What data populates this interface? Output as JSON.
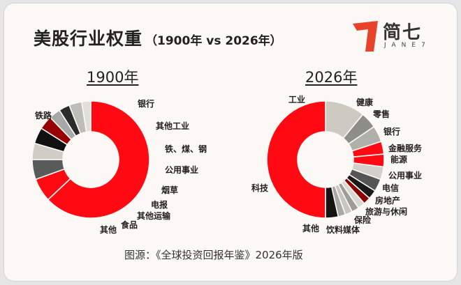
{
  "header": {
    "title": "美股行业权重",
    "subtitle": "（1900年 vs 2026年）"
  },
  "logo": {
    "name": "简七",
    "sub": "JANE7",
    "color": "#e8432a"
  },
  "source": "图源：《全球投资回报年鉴》2026年版",
  "chart_data": [
    {
      "type": "pie",
      "donut": true,
      "title": "1900年",
      "labels": [
        "铁路",
        "银行",
        "其他工业",
        "铁、煤、钢",
        "公用事业",
        "烟草",
        "电报",
        "其他运输",
        "食品",
        "其他"
      ],
      "values": [
        63,
        6.5,
        5.5,
        4.5,
        4.5,
        3.8,
        3.2,
        3.0,
        3.5,
        2.5
      ],
      "colors": [
        "#ff0a12",
        "#ff0a12",
        "#5a5a5a",
        "#cfcdc4",
        "#111111",
        "#960000",
        "#a8a8a8",
        "#2b2b2b",
        "#bdbdb8",
        "#e0dfd8"
      ]
    },
    {
      "type": "pie",
      "donut": true,
      "title": "2026年",
      "labels": [
        "工业",
        "健康",
        "零售",
        "银行",
        "金融服务",
        "能源",
        "公用事业",
        "电信",
        "房地产",
        "旅游与休闲",
        "保险",
        "媒体",
        "饮料",
        "其他",
        "科技"
      ],
      "values": [
        11,
        4.5,
        4.5,
        3.5,
        3.5,
        3.5,
        3.5,
        2.5,
        2.0,
        2.0,
        2.0,
        2.0,
        2.0,
        3.5,
        50
      ],
      "colors": [
        "#cdcbc1",
        "#8e8e89",
        "#b0b0aa",
        "#ff0a12",
        "#ff0a12",
        "#d2d0c8",
        "#555555",
        "#1a1a1a",
        "#8a0000",
        "#d9d8d0",
        "#9c9c98",
        "#c8c7bf",
        "#a9a9a4",
        "#141414",
        "#ff0a12"
      ]
    }
  ]
}
